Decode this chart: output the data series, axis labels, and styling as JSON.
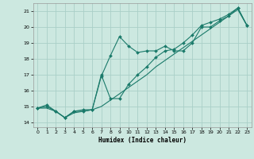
{
  "xlabel": "Humidex (Indice chaleur)",
  "bg_color": "#cce8e0",
  "grid_color": "#aacfc8",
  "line_color": "#1a7a6a",
  "x_ticks": [
    0,
    1,
    2,
    3,
    4,
    5,
    6,
    7,
    8,
    9,
    10,
    11,
    12,
    13,
    14,
    15,
    16,
    17,
    18,
    19,
    20,
    21,
    22,
    23
  ],
  "y_ticks": [
    14,
    15,
    16,
    17,
    18,
    19,
    20,
    21
  ],
  "xlim": [
    -0.5,
    23.5
  ],
  "ylim": [
    13.7,
    21.5
  ],
  "series1_x": [
    0,
    1,
    2,
    3,
    4,
    5,
    6,
    7,
    8,
    9,
    10,
    11,
    12,
    13,
    14,
    15,
    16,
    17,
    18,
    19,
    20,
    21,
    22,
    23
  ],
  "series1_y": [
    14.9,
    15.1,
    14.7,
    14.3,
    14.7,
    14.7,
    14.8,
    16.9,
    18.2,
    19.4,
    18.8,
    18.4,
    18.5,
    18.5,
    18.8,
    18.5,
    18.5,
    19.0,
    20.0,
    20.0,
    20.4,
    20.7,
    21.2,
    20.1
  ],
  "series2_x": [
    0,
    1,
    2,
    3,
    4,
    5,
    6,
    7,
    8,
    9,
    10,
    11,
    12,
    13,
    14,
    15,
    16,
    17,
    18,
    19,
    20,
    21,
    22,
    23
  ],
  "series2_y": [
    14.9,
    15.0,
    14.7,
    14.3,
    14.7,
    14.8,
    14.8,
    17.0,
    15.5,
    15.5,
    16.4,
    17.0,
    17.5,
    18.1,
    18.5,
    18.6,
    19.0,
    19.5,
    20.1,
    20.3,
    20.5,
    20.8,
    21.2,
    20.1
  ],
  "series3_x": [
    0,
    1,
    2,
    3,
    4,
    5,
    6,
    7,
    8,
    9,
    10,
    11,
    12,
    13,
    14,
    15,
    16,
    17,
    18,
    19,
    20,
    21,
    22,
    23
  ],
  "series3_y": [
    14.9,
    14.9,
    14.7,
    14.3,
    14.6,
    14.7,
    14.8,
    15.0,
    15.4,
    15.8,
    16.2,
    16.6,
    17.0,
    17.5,
    17.9,
    18.3,
    18.7,
    19.1,
    19.5,
    19.9,
    20.3,
    20.7,
    21.1,
    20.1
  ]
}
